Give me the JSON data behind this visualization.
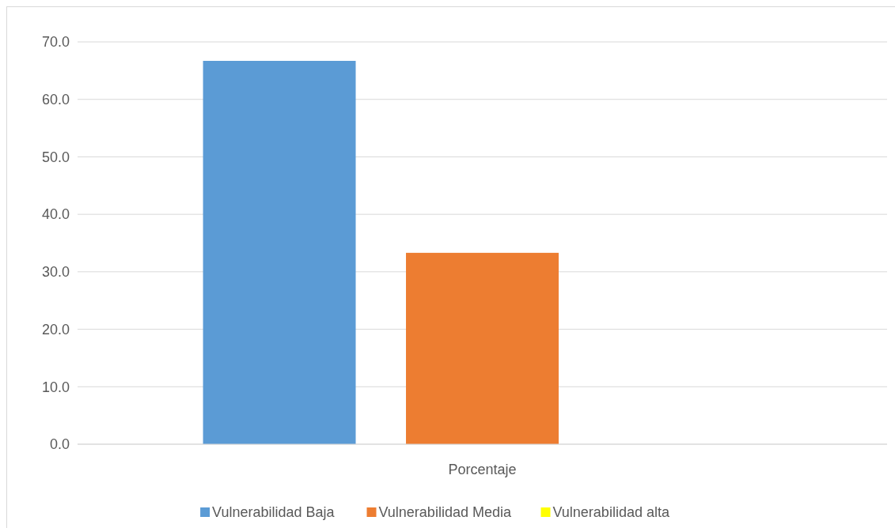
{
  "chart_data": {
    "type": "bar",
    "categories": [
      "Porcentaje"
    ],
    "series": [
      {
        "name": "Vulnerabilidad Baja",
        "color": "#5b9bd5",
        "values": [
          66.7
        ]
      },
      {
        "name": "Vulnerabilidad Media",
        "color": "#ed7d31",
        "values": [
          33.3
        ]
      },
      {
        "name": "Vulnerabilidad alta",
        "color": "#ffff00",
        "values": [
          0
        ]
      }
    ],
    "ylim": [
      0,
      70
    ],
    "yticks": [
      {
        "value": 0,
        "label": "0.0"
      },
      {
        "value": 10,
        "label": "10.0"
      },
      {
        "value": 20,
        "label": "20.0"
      },
      {
        "value": 30,
        "label": "30.0"
      },
      {
        "value": 40,
        "label": "40.0"
      },
      {
        "value": 50,
        "label": "50.0"
      },
      {
        "value": 60,
        "label": "60.0"
      },
      {
        "value": 70,
        "label": "70.0"
      }
    ],
    "grid": "y",
    "legend": "bottom"
  }
}
